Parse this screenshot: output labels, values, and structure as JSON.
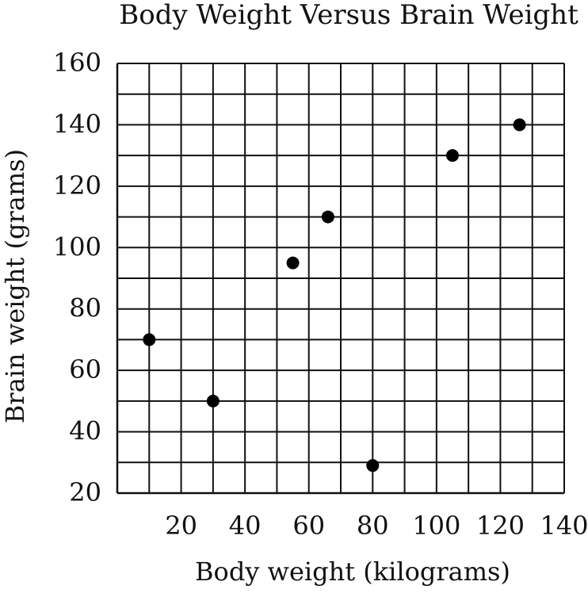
{
  "chart_data": {
    "type": "scatter",
    "title": "Body Weight Versus Brain Weight",
    "xlabel": "Body weight (kilograms)",
    "ylabel": "Brain weight (grams)",
    "xlim": [
      0,
      140
    ],
    "ylim": [
      20,
      160
    ],
    "x_ticks": [
      20,
      40,
      60,
      80,
      100,
      120,
      140
    ],
    "y_ticks": [
      20,
      40,
      60,
      80,
      100,
      120,
      140,
      160
    ],
    "x_tick_labels": [
      "20",
      "40",
      "60",
      "80",
      "100",
      "120",
      "140"
    ],
    "y_tick_labels": [
      "20",
      "40",
      "60",
      "80",
      "100",
      "120",
      "140",
      "160"
    ],
    "x_grid_step": 10,
    "y_grid_step": 10,
    "grid": true,
    "colors": {
      "points": "#000000",
      "grid": "#111111"
    },
    "series": [
      {
        "points": [
          {
            "x": 10,
            "y": 70
          },
          {
            "x": 30,
            "y": 50
          },
          {
            "x": 55,
            "y": 95
          },
          {
            "x": 66,
            "y": 110
          },
          {
            "x": 80,
            "y": 29
          },
          {
            "x": 105,
            "y": 130
          },
          {
            "x": 126,
            "y": 140
          }
        ]
      }
    ]
  }
}
